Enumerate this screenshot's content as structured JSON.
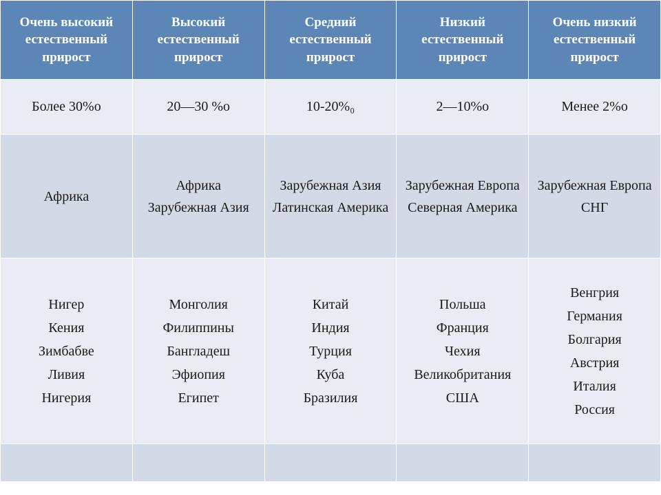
{
  "table": {
    "type": "table",
    "columns": 5,
    "header_bg": "#5b86b6",
    "header_fg": "#ffffff",
    "row_alt_bg_light": "#e9ecf2",
    "row_alt_bg_dark": "#d3d9e6",
    "border_color": "#ffffff",
    "font_family": "Times New Roman",
    "headers": [
      "Очень высокий естественный прирост",
      "Высокий естественный прирост",
      "Средний естественный прирост",
      "Низкий естественный прирост",
      "Очень низкий естественный прирост"
    ],
    "rate_row": [
      "Более 30%о",
      "20—30 %о",
      "10-20%₀",
      "2—10%о",
      "Менее 2%о"
    ],
    "region_row": [
      "Африка",
      "Африка\nЗарубежная Азия",
      "Зарубежная Азия\nЛатинская Америка",
      "Зарубежная Европа\nСеверная Америка",
      "Зарубежная Европа\nСНГ"
    ],
    "countries_row": [
      "Нигер\nКения\nЗимбабве\nЛивия\nНигерия",
      "Монголия\nФилиппины\nБангладеш\nЭфиопия\nЕгипет",
      "Китай\nИндия\nТурция\nКуба\nБразилия",
      "Польша\nФранция\nЧехия\nВеликобритания\nСША",
      "Венгрия\nГермания\nБолгария\nАвстрия\nИталия\nРоссия"
    ],
    "blank_row": [
      "",
      "",
      "",
      "",
      ""
    ]
  }
}
